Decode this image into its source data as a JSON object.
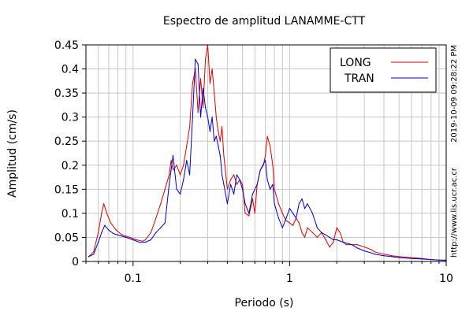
{
  "chart_data": {
    "type": "line",
    "title": "Espectro de amplitud LANAMME-CTT",
    "xlabel": "Periodo (s)",
    "ylabel": "Amplitud (cm/s)",
    "xscale": "log",
    "xlim": [
      0.05,
      10
    ],
    "ylim": [
      0,
      0.45
    ],
    "x_tick_labels": [
      "0.1",
      "1",
      "10"
    ],
    "y_tick_labels": [
      "0",
      "0.05",
      "0.1",
      "0.15",
      "0.2",
      "0.25",
      "0.3",
      "0.35",
      "0.4",
      "0.45"
    ],
    "grid": true,
    "legend_position": "top-right",
    "annotations": [
      "2019-10-09 09:28:22 PM",
      "http://www.lis.ucr.ac.cr"
    ],
    "series": [
      {
        "name": "LONG",
        "color": "#dd0000",
        "x": [
          0.052,
          0.056,
          0.06,
          0.063,
          0.065,
          0.068,
          0.072,
          0.078,
          0.085,
          0.095,
          0.105,
          0.115,
          0.12,
          0.13,
          0.14,
          0.15,
          0.16,
          0.17,
          0.175,
          0.18,
          0.19,
          0.2,
          0.21,
          0.22,
          0.23,
          0.24,
          0.25,
          0.26,
          0.27,
          0.28,
          0.29,
          0.3,
          0.31,
          0.32,
          0.33,
          0.34,
          0.35,
          0.36,
          0.37,
          0.38,
          0.4,
          0.42,
          0.44,
          0.46,
          0.48,
          0.5,
          0.52,
          0.55,
          0.58,
          0.6,
          0.62,
          0.65,
          0.68,
          0.7,
          0.72,
          0.75,
          0.78,
          0.8,
          0.85,
          0.9,
          0.95,
          1.0,
          1.05,
          1.1,
          1.15,
          1.2,
          1.25,
          1.3,
          1.4,
          1.5,
          1.6,
          1.7,
          1.8,
          1.9,
          2.0,
          2.1,
          2.2,
          2.3,
          2.5,
          2.7,
          3.0,
          3.3,
          3.5,
          4.0,
          4.5,
          5.0,
          6.0,
          7.0,
          8.0,
          9.0,
          10.0
        ],
        "y": [
          0.01,
          0.02,
          0.06,
          0.1,
          0.12,
          0.1,
          0.08,
          0.065,
          0.055,
          0.05,
          0.045,
          0.042,
          0.045,
          0.06,
          0.09,
          0.12,
          0.15,
          0.18,
          0.21,
          0.19,
          0.2,
          0.18,
          0.2,
          0.24,
          0.28,
          0.37,
          0.4,
          0.31,
          0.38,
          0.32,
          0.42,
          0.45,
          0.37,
          0.4,
          0.35,
          0.3,
          0.27,
          0.25,
          0.28,
          0.22,
          0.15,
          0.17,
          0.18,
          0.16,
          0.17,
          0.16,
          0.1,
          0.095,
          0.13,
          0.1,
          0.16,
          0.19,
          0.2,
          0.22,
          0.26,
          0.24,
          0.2,
          0.15,
          0.12,
          0.1,
          0.085,
          0.08,
          0.075,
          0.09,
          0.08,
          0.06,
          0.05,
          0.07,
          0.06,
          0.05,
          0.06,
          0.045,
          0.03,
          0.04,
          0.07,
          0.06,
          0.04,
          0.035,
          0.035,
          0.035,
          0.03,
          0.025,
          0.02,
          0.015,
          0.012,
          0.01,
          0.008,
          0.006,
          0.004,
          0.003,
          0.003
        ]
      },
      {
        "name": "TRAN",
        "color": "#0000cc",
        "x": [
          0.052,
          0.056,
          0.06,
          0.063,
          0.066,
          0.07,
          0.075,
          0.08,
          0.09,
          0.1,
          0.11,
          0.12,
          0.13,
          0.14,
          0.15,
          0.16,
          0.17,
          0.18,
          0.19,
          0.2,
          0.21,
          0.22,
          0.23,
          0.24,
          0.25,
          0.26,
          0.27,
          0.28,
          0.29,
          0.3,
          0.31,
          0.32,
          0.33,
          0.34,
          0.35,
          0.36,
          0.37,
          0.38,
          0.4,
          0.42,
          0.44,
          0.46,
          0.48,
          0.5,
          0.52,
          0.55,
          0.58,
          0.62,
          0.65,
          0.7,
          0.72,
          0.75,
          0.78,
          0.8,
          0.85,
          0.9,
          0.95,
          1.0,
          1.05,
          1.1,
          1.15,
          1.2,
          1.25,
          1.3,
          1.4,
          1.5,
          1.6,
          1.7,
          1.8,
          1.9,
          2.0,
          2.2,
          2.5,
          2.7,
          3.0,
          3.3,
          3.5,
          4.0,
          4.5,
          5.0,
          6.0,
          7.0,
          8.0,
          9.0,
          10.0
        ],
        "y": [
          0.01,
          0.015,
          0.04,
          0.06,
          0.075,
          0.065,
          0.058,
          0.055,
          0.05,
          0.045,
          0.04,
          0.04,
          0.045,
          0.06,
          0.07,
          0.08,
          0.16,
          0.22,
          0.15,
          0.14,
          0.17,
          0.21,
          0.18,
          0.3,
          0.42,
          0.41,
          0.3,
          0.36,
          0.32,
          0.3,
          0.27,
          0.3,
          0.25,
          0.26,
          0.24,
          0.22,
          0.18,
          0.16,
          0.12,
          0.16,
          0.14,
          0.18,
          0.17,
          0.15,
          0.12,
          0.1,
          0.14,
          0.16,
          0.19,
          0.21,
          0.17,
          0.15,
          0.16,
          0.12,
          0.09,
          0.07,
          0.09,
          0.11,
          0.1,
          0.09,
          0.12,
          0.13,
          0.11,
          0.12,
          0.1,
          0.07,
          0.06,
          0.055,
          0.05,
          0.045,
          0.045,
          0.04,
          0.035,
          0.028,
          0.022,
          0.018,
          0.015,
          0.012,
          0.01,
          0.008,
          0.006,
          0.005,
          0.004,
          0.003,
          0.002
        ]
      }
    ]
  }
}
